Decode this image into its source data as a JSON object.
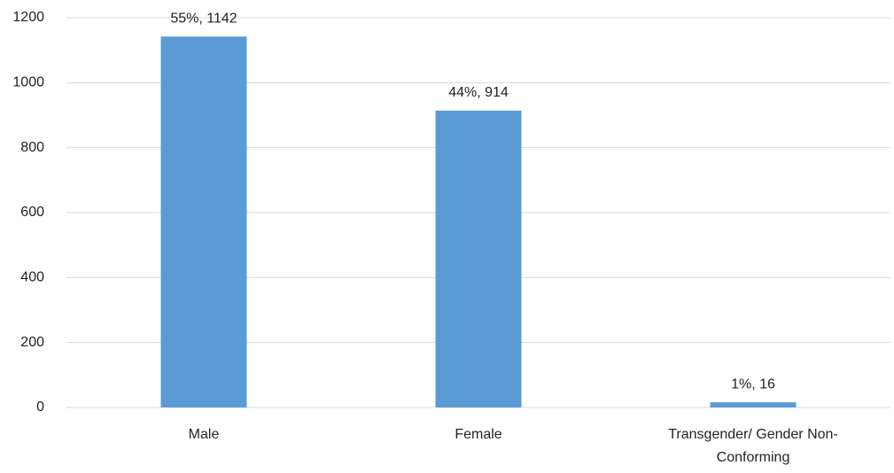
{
  "chart_data": {
    "type": "bar",
    "categories": [
      "Male",
      "Female",
      "Transgender/ Gender Non-Conforming"
    ],
    "values": [
      1142,
      914,
      16
    ],
    "value_labels": [
      "55%, 1142",
      "44%, 914",
      "1%, 16"
    ],
    "color": "#5b9bd5",
    "ylim": [
      0,
      1200
    ],
    "yticks": [
      0,
      200,
      400,
      600,
      800,
      1000,
      1200
    ],
    "grid": true
  }
}
